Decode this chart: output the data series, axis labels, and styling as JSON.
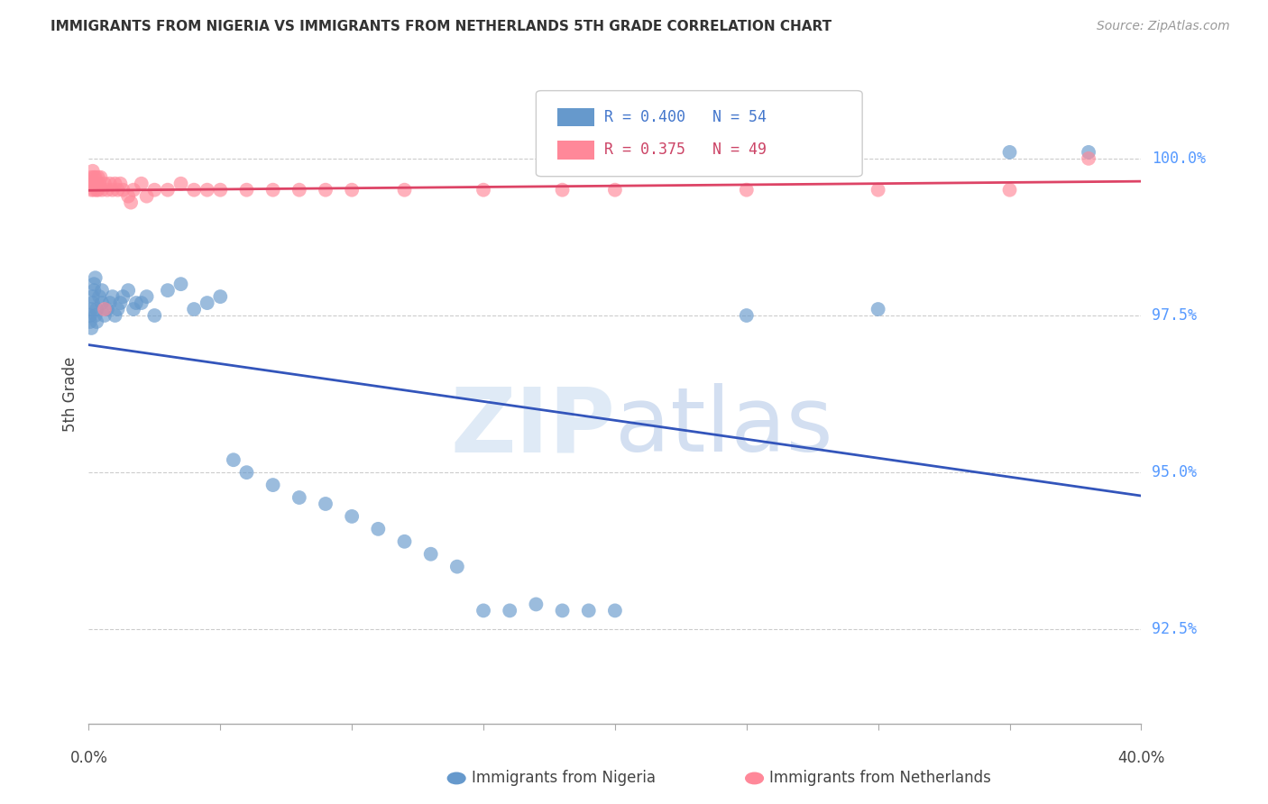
{
  "title": "IMMIGRANTS FROM NIGERIA VS IMMIGRANTS FROM NETHERLANDS 5TH GRADE CORRELATION CHART",
  "source": "Source: ZipAtlas.com",
  "ylabel": "5th Grade",
  "y_ticks": [
    92.5,
    95.0,
    97.5,
    100.0
  ],
  "y_tick_labels": [
    "92.5%",
    "95.0%",
    "97.5%",
    "100.0%"
  ],
  "xlim": [
    0.0,
    40.0
  ],
  "ylim": [
    91.0,
    101.5
  ],
  "legend_nigeria": "Immigrants from Nigeria",
  "legend_netherlands": "Immigrants from Netherlands",
  "R_nigeria": 0.4,
  "N_nigeria": 54,
  "R_netherlands": 0.375,
  "N_netherlands": 49,
  "color_nigeria": "#6699CC",
  "color_netherlands": "#FF8899",
  "line_color_nigeria": "#3355BB",
  "line_color_netherlands": "#DD4466",
  "nigeria_x": [
    0.05,
    0.05,
    0.1,
    0.1,
    0.15,
    0.15,
    0.2,
    0.2,
    0.25,
    0.25,
    0.3,
    0.3,
    0.4,
    0.5,
    0.5,
    0.6,
    0.7,
    0.8,
    0.9,
    1.0,
    1.1,
    1.2,
    1.3,
    1.5,
    1.7,
    2.0,
    2.2,
    2.5,
    3.0,
    3.5,
    4.0,
    4.5,
    5.0,
    5.5,
    6.0,
    7.0,
    8.0,
    9.0,
    10.0,
    11.0,
    12.0,
    13.0,
    14.0,
    15.0,
    16.0,
    17.0,
    18.0,
    19.0,
    20.0,
    25.0,
    30.0,
    35.0,
    38.0,
    1.8
  ],
  "nigeria_y": [
    97.4,
    97.5,
    97.3,
    97.6,
    97.7,
    97.8,
    97.9,
    98.0,
    98.1,
    97.5,
    97.4,
    97.6,
    97.8,
    97.7,
    97.9,
    97.5,
    97.6,
    97.7,
    97.8,
    97.5,
    97.6,
    97.7,
    97.8,
    97.9,
    97.6,
    97.7,
    97.8,
    97.5,
    97.9,
    98.0,
    97.6,
    97.7,
    97.8,
    95.2,
    95.0,
    94.8,
    94.6,
    94.5,
    94.3,
    94.1,
    93.9,
    93.7,
    93.5,
    92.8,
    92.8,
    92.9,
    92.8,
    92.8,
    92.8,
    97.5,
    97.6,
    100.1,
    100.1,
    97.7
  ],
  "netherlands_x": [
    0.05,
    0.1,
    0.1,
    0.15,
    0.15,
    0.2,
    0.2,
    0.25,
    0.25,
    0.3,
    0.3,
    0.35,
    0.35,
    0.4,
    0.5,
    0.6,
    0.7,
    0.8,
    0.9,
    1.0,
    1.1,
    1.2,
    1.3,
    1.5,
    1.7,
    2.0,
    2.5,
    3.0,
    3.5,
    4.0,
    4.5,
    5.0,
    6.0,
    7.0,
    8.0,
    9.0,
    10.0,
    12.0,
    15.0,
    18.0,
    20.0,
    25.0,
    30.0,
    35.0,
    38.0,
    0.6,
    0.45,
    2.2,
    1.6
  ],
  "netherlands_y": [
    99.6,
    99.7,
    99.5,
    99.8,
    99.6,
    99.7,
    99.5,
    99.6,
    99.7,
    99.5,
    99.6,
    99.7,
    99.5,
    99.6,
    99.5,
    99.6,
    99.5,
    99.6,
    99.5,
    99.6,
    99.5,
    99.6,
    99.5,
    99.4,
    99.5,
    99.6,
    99.5,
    99.5,
    99.6,
    99.5,
    99.5,
    99.5,
    99.5,
    99.5,
    99.5,
    99.5,
    99.5,
    99.5,
    99.5,
    99.5,
    99.5,
    99.5,
    99.5,
    99.5,
    100.0,
    97.6,
    99.7,
    99.4,
    99.3
  ]
}
